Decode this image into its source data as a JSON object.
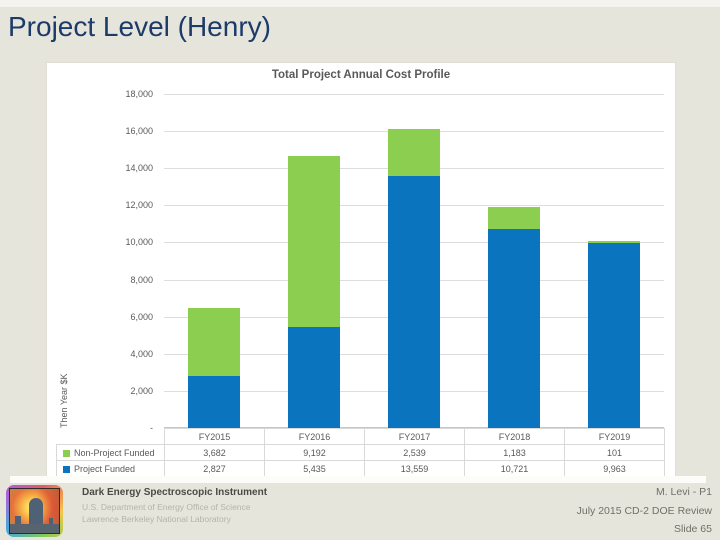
{
  "slide": {
    "title": "Project Level (Henry)"
  },
  "chart_data": {
    "type": "bar",
    "stacked": true,
    "title": "Total Project Annual Cost Profile",
    "xlabel": "",
    "ylabel": "Then Year $K",
    "categories": [
      "FY2015",
      "FY2016",
      "FY2017",
      "FY2018",
      "FY2019"
    ],
    "series": [
      {
        "name": "Non-Project Funded",
        "color": "#8cce50",
        "values": [
          3682,
          9192,
          2539,
          1183,
          101
        ]
      },
      {
        "name": "Project Funded",
        "color": "#0a74be",
        "values": [
          2827,
          5435,
          13559,
          10721,
          9963
        ]
      }
    ],
    "ylim": [
      0,
      18000
    ],
    "ytick_step": 2000,
    "ytick_labels": [
      "-",
      "2,000",
      "4,000",
      "6,000",
      "8,000",
      "10,000",
      "12,000",
      "14,000",
      "16,000",
      "18,000"
    ],
    "grid": true,
    "legend_position": "data-table-left"
  },
  "footer": {
    "project": "Dark Energy Spectroscopic Instrument",
    "org1": "U.S. Department of Energy Office of Science",
    "org2": "Lawrence Berkeley National Laboratory",
    "author": "M. Levi - P1",
    "review": "July 2015 CD-2 DOE Review",
    "slide": "Slide 65"
  },
  "colors": {
    "slide_background": "#e6e5dc",
    "title_text": "#1d3b69",
    "chart_text": "#595959",
    "gridline": "#dedede",
    "table_border": "#d9d9d9",
    "non_project_green": "#8cce50",
    "project_blue": "#0a74be"
  }
}
